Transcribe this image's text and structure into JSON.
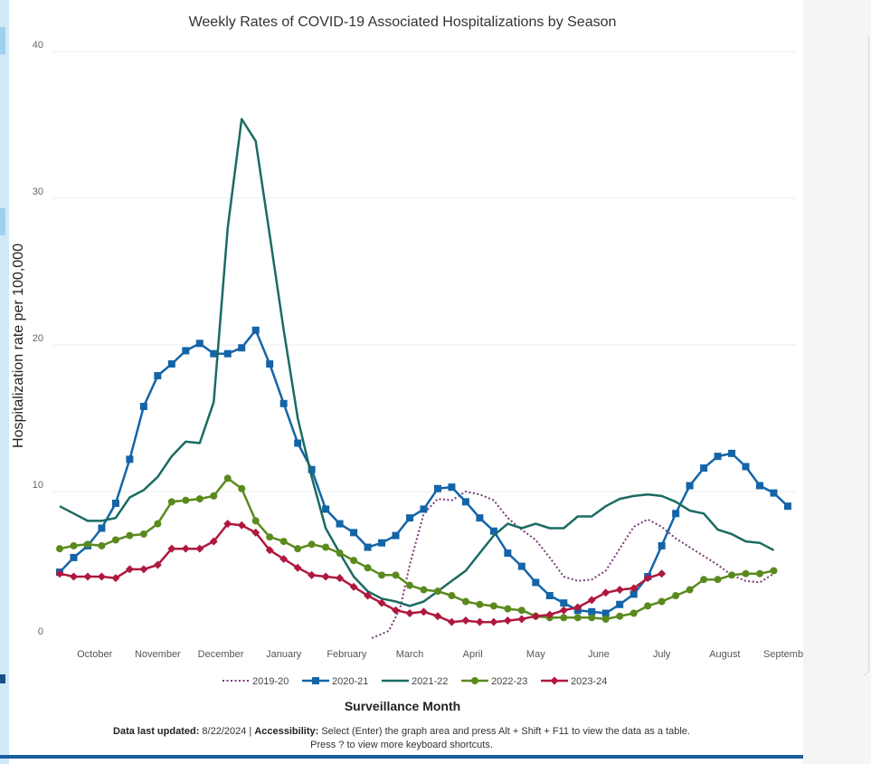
{
  "chart_data": {
    "type": "line",
    "title": "Weekly Rates of COVID-19 Associated Hospitalizations by Season",
    "xlabel": "Surveillance Month",
    "ylabel": "Hospitalization rate per 100,000",
    "ylim": [
      0,
      40
    ],
    "yticks": [
      0,
      10,
      20,
      30,
      40
    ],
    "xlim": [
      1,
      52
    ],
    "months": [
      {
        "label": "October",
        "x": 3.5
      },
      {
        "label": "November",
        "x": 8
      },
      {
        "label": "December",
        "x": 12.5
      },
      {
        "label": "January",
        "x": 17
      },
      {
        "label": "February",
        "x": 21.5
      },
      {
        "label": "March",
        "x": 26
      },
      {
        "label": "April",
        "x": 30.5
      },
      {
        "label": "May",
        "x": 35
      },
      {
        "label": "June",
        "x": 39.5
      },
      {
        "label": "July",
        "x": 44
      },
      {
        "label": "August",
        "x": 48.5
      },
      {
        "label": "September",
        "x": 53
      }
    ],
    "grid": true,
    "legend": "bottom",
    "series": [
      {
        "name": "2019-20",
        "color": "#7a3a78",
        "style": "dotted",
        "marker": "none",
        "points": [
          [
            23.3,
            0
          ],
          [
            24.5,
            0.5
          ],
          [
            25.3,
            2.0
          ],
          [
            26,
            5.0
          ],
          [
            27,
            8.5
          ],
          [
            28,
            9.5
          ],
          [
            29,
            9.4
          ],
          [
            30,
            10.0
          ],
          [
            31,
            9.8
          ],
          [
            32,
            9.4
          ],
          [
            33,
            8.2
          ],
          [
            34,
            7.4
          ],
          [
            35,
            6.7
          ],
          [
            36,
            5.5
          ],
          [
            37,
            4.2
          ],
          [
            38,
            3.9
          ],
          [
            39,
            4.0
          ],
          [
            40,
            4.6
          ],
          [
            41,
            6.1
          ],
          [
            42,
            7.6
          ],
          [
            43,
            8.1
          ],
          [
            44,
            7.6
          ],
          [
            45,
            6.8
          ],
          [
            46,
            6.2
          ],
          [
            47,
            5.6
          ],
          [
            48,
            5.0
          ],
          [
            49,
            4.3
          ],
          [
            50,
            3.9
          ],
          [
            51,
            3.8
          ],
          [
            52,
            4.4
          ]
        ]
      },
      {
        "name": "2020-21",
        "color": "#1464a8",
        "style": "solid",
        "marker": "square",
        "points": [
          [
            1,
            4.5
          ],
          [
            2,
            5.5
          ],
          [
            3,
            6.3
          ],
          [
            4,
            7.5
          ],
          [
            5,
            9.2
          ],
          [
            6,
            12.2
          ],
          [
            7,
            15.8
          ],
          [
            8,
            17.9
          ],
          [
            9,
            18.7
          ],
          [
            10,
            19.6
          ],
          [
            11,
            20.1
          ],
          [
            12,
            19.4
          ],
          [
            13,
            19.4
          ],
          [
            14,
            19.8
          ],
          [
            15,
            21.0
          ],
          [
            16,
            18.7
          ],
          [
            17,
            16.0
          ],
          [
            18,
            13.3
          ],
          [
            19,
            11.5
          ],
          [
            20,
            8.8
          ],
          [
            21,
            7.8
          ],
          [
            22,
            7.2
          ],
          [
            23,
            6.2
          ],
          [
            24,
            6.5
          ],
          [
            25,
            7.0
          ],
          [
            26,
            8.2
          ],
          [
            27,
            8.8
          ],
          [
            28,
            10.2
          ],
          [
            29,
            10.3
          ],
          [
            30,
            9.3
          ],
          [
            31,
            8.2
          ],
          [
            32,
            7.3
          ],
          [
            33,
            5.8
          ],
          [
            34,
            4.9
          ],
          [
            35,
            3.8
          ],
          [
            36,
            2.9
          ],
          [
            37,
            2.4
          ],
          [
            38,
            1.9
          ],
          [
            39,
            1.8
          ],
          [
            40,
            1.7
          ],
          [
            41,
            2.3
          ],
          [
            42,
            3.0
          ],
          [
            43,
            4.2
          ],
          [
            44,
            6.3
          ],
          [
            45,
            8.5
          ],
          [
            46,
            10.4
          ],
          [
            47,
            11.6
          ],
          [
            48,
            12.4
          ],
          [
            49,
            12.6
          ],
          [
            50,
            11.7
          ],
          [
            51,
            10.4
          ],
          [
            52,
            9.9
          ],
          [
            53,
            9.0
          ]
        ]
      },
      {
        "name": "2021-22",
        "color": "#1b6b62",
        "style": "solid",
        "marker": "none",
        "points": [
          [
            1,
            9.0
          ],
          [
            2,
            8.5
          ],
          [
            3,
            8.0
          ],
          [
            4,
            8.0
          ],
          [
            5,
            8.2
          ],
          [
            6,
            9.6
          ],
          [
            7,
            10.1
          ],
          [
            8,
            11.0
          ],
          [
            9,
            12.4
          ],
          [
            10,
            13.4
          ],
          [
            11,
            13.3
          ],
          [
            12,
            16.1
          ],
          [
            13,
            28.0
          ],
          [
            14,
            35.4
          ],
          [
            15,
            33.9
          ],
          [
            16,
            27.5
          ],
          [
            17,
            21.0
          ],
          [
            18,
            15.0
          ],
          [
            19,
            11.0
          ],
          [
            20,
            7.5
          ],
          [
            21,
            5.8
          ],
          [
            22,
            4.2
          ],
          [
            23,
            3.2
          ],
          [
            24,
            2.7
          ],
          [
            25,
            2.5
          ],
          [
            26,
            2.2
          ],
          [
            27,
            2.5
          ],
          [
            28,
            3.2
          ],
          [
            29,
            3.9
          ],
          [
            30,
            4.6
          ],
          [
            31,
            5.8
          ],
          [
            32,
            7.0
          ],
          [
            33,
            7.8
          ],
          [
            34,
            7.5
          ],
          [
            35,
            7.8
          ],
          [
            36,
            7.5
          ],
          [
            37,
            7.5
          ],
          [
            38,
            8.3
          ],
          [
            39,
            8.3
          ],
          [
            40,
            9.0
          ],
          [
            41,
            9.5
          ],
          [
            42,
            9.7
          ],
          [
            43,
            9.8
          ],
          [
            44,
            9.7
          ],
          [
            45,
            9.3
          ],
          [
            46,
            8.7
          ],
          [
            47,
            8.5
          ],
          [
            48,
            7.4
          ],
          [
            49,
            7.1
          ],
          [
            50,
            6.6
          ],
          [
            51,
            6.5
          ],
          [
            52,
            6.0
          ]
        ]
      },
      {
        "name": "2022-23",
        "color": "#5a8a1e",
        "style": "solid",
        "marker": "circle",
        "points": [
          [
            1,
            6.1
          ],
          [
            2,
            6.3
          ],
          [
            3,
            6.4
          ],
          [
            4,
            6.3
          ],
          [
            5,
            6.7
          ],
          [
            6,
            7.0
          ],
          [
            7,
            7.1
          ],
          [
            8,
            7.8
          ],
          [
            9,
            9.3
          ],
          [
            10,
            9.4
          ],
          [
            11,
            9.5
          ],
          [
            12,
            9.7
          ],
          [
            13,
            10.9
          ],
          [
            14,
            10.2
          ],
          [
            15,
            8.0
          ],
          [
            16,
            6.9
          ],
          [
            17,
            6.6
          ],
          [
            18,
            6.1
          ],
          [
            19,
            6.4
          ],
          [
            20,
            6.2
          ],
          [
            21,
            5.8
          ],
          [
            22,
            5.3
          ],
          [
            23,
            4.8
          ],
          [
            24,
            4.3
          ],
          [
            25,
            4.3
          ],
          [
            26,
            3.6
          ],
          [
            27,
            3.3
          ],
          [
            28,
            3.2
          ],
          [
            29,
            2.9
          ],
          [
            30,
            2.5
          ],
          [
            31,
            2.3
          ],
          [
            32,
            2.2
          ],
          [
            33,
            2.0
          ],
          [
            34,
            1.9
          ],
          [
            35,
            1.5
          ],
          [
            36,
            1.4
          ],
          [
            37,
            1.4
          ],
          [
            38,
            1.4
          ],
          [
            39,
            1.4
          ],
          [
            40,
            1.3
          ],
          [
            41,
            1.5
          ],
          [
            42,
            1.7
          ],
          [
            43,
            2.2
          ],
          [
            44,
            2.5
          ],
          [
            45,
            2.9
          ],
          [
            46,
            3.3
          ],
          [
            47,
            4.0
          ],
          [
            48,
            4.0
          ],
          [
            49,
            4.3
          ],
          [
            50,
            4.4
          ],
          [
            51,
            4.4
          ],
          [
            52,
            4.6
          ]
        ]
      },
      {
        "name": "2023-24",
        "color": "#b0183d",
        "style": "solid",
        "marker": "diamond",
        "points": [
          [
            1,
            4.4
          ],
          [
            2,
            4.2
          ],
          [
            3,
            4.2
          ],
          [
            4,
            4.2
          ],
          [
            5,
            4.1
          ],
          [
            6,
            4.7
          ],
          [
            7,
            4.7
          ],
          [
            8,
            5.0
          ],
          [
            9,
            6.1
          ],
          [
            10,
            6.1
          ],
          [
            11,
            6.1
          ],
          [
            12,
            6.6
          ],
          [
            13,
            7.8
          ],
          [
            14,
            7.7
          ],
          [
            15,
            7.2
          ],
          [
            16,
            6.0
          ],
          [
            17,
            5.4
          ],
          [
            18,
            4.8
          ],
          [
            19,
            4.3
          ],
          [
            20,
            4.2
          ],
          [
            21,
            4.1
          ],
          [
            22,
            3.5
          ],
          [
            23,
            2.9
          ],
          [
            24,
            2.4
          ],
          [
            25,
            1.9
          ],
          [
            26,
            1.7
          ],
          [
            27,
            1.8
          ],
          [
            28,
            1.5
          ],
          [
            29,
            1.1
          ],
          [
            30,
            1.2
          ],
          [
            31,
            1.1
          ],
          [
            32,
            1.1
          ],
          [
            33,
            1.2
          ],
          [
            34,
            1.3
          ],
          [
            35,
            1.5
          ],
          [
            36,
            1.6
          ],
          [
            37,
            1.9
          ],
          [
            38,
            2.1
          ],
          [
            39,
            2.6
          ],
          [
            40,
            3.1
          ],
          [
            41,
            3.3
          ],
          [
            42,
            3.4
          ],
          [
            43,
            4.1
          ],
          [
            44,
            4.4
          ]
        ]
      }
    ]
  },
  "footer": {
    "line1_label_updated": "Data last updated:",
    "line1_date": " 8/22/2024 | ",
    "line1_label_access": "Accessibility:",
    "line1_access_text": " Select (Enter) the graph area and press Alt + Shift + F11 to view the data as a table.",
    "line2": "Press ? to view more keyboard shortcuts."
  }
}
